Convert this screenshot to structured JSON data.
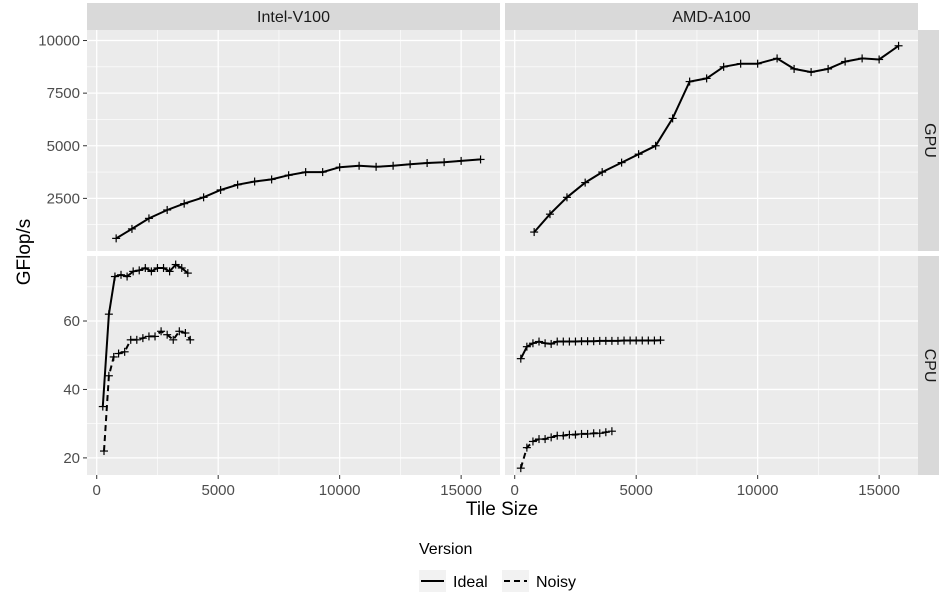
{
  "chart_data": {
    "type": "line",
    "facet_columns": [
      "Intel-V100",
      "AMD-A100"
    ],
    "facet_rows": [
      "GPU",
      "CPU"
    ],
    "xlabel": "Tile Size",
    "ylabel": "GFlop/s",
    "xlim": [
      -400,
      16600
    ],
    "x_ticks": [
      0,
      5000,
      10000,
      15000
    ],
    "x_tick_labels": [
      "0",
      "5000",
      "10000",
      "15000"
    ],
    "rows": {
      "GPU": {
        "ylim": [
          0,
          10500
        ],
        "y_ticks": [
          2500,
          5000,
          7500,
          10000
        ],
        "y_tick_labels": [
          "2500",
          "5000",
          "7500",
          "10000"
        ]
      },
      "CPU": {
        "ylim": [
          15,
          79
        ],
        "y_ticks": [
          20,
          40,
          60
        ],
        "y_tick_labels": [
          "20",
          "40",
          "60"
        ]
      }
    },
    "legend": {
      "title": "Version",
      "position": "bottom",
      "entries": [
        {
          "name": "Ideal",
          "linetype": "solid"
        },
        {
          "name": "Noisy",
          "linetype": "dashed"
        }
      ]
    },
    "panels": [
      {
        "column": "Intel-V100",
        "row": "GPU",
        "series": [
          {
            "name": "Ideal",
            "x": [
              800,
              1450,
              2150,
              2900,
              3600,
              4400,
              5100,
              5800,
              6500,
              7200,
              7900,
              8600,
              9300,
              10000,
              10800,
              11500,
              12200,
              12900,
              13600,
              14300,
              15000,
              15800
            ],
            "y": [
              600,
              1050,
              1550,
              1950,
              2250,
              2550,
              2900,
              3150,
              3300,
              3400,
              3600,
              3750,
              3750,
              3980,
              4050,
              4000,
              4050,
              4120,
              4180,
              4220,
              4280,
              4350
            ]
          }
        ]
      },
      {
        "column": "AMD-A100",
        "row": "GPU",
        "series": [
          {
            "name": "Ideal",
            "x": [
              800,
              1450,
              2150,
              2900,
              3600,
              4400,
              5100,
              5800,
              6500,
              7200,
              7900,
              8600,
              9300,
              10000,
              10800,
              11500,
              12200,
              12900,
              13600,
              14300,
              15000,
              15800
            ],
            "y": [
              900,
              1750,
              2550,
              3250,
              3750,
              4200,
              4600,
              5000,
              6300,
              8050,
              8200,
              8750,
              8900,
              8900,
              9150,
              8650,
              8500,
              8650,
              9000,
              9150,
              9100,
              9750
            ]
          }
        ]
      },
      {
        "column": "Intel-V100",
        "row": "CPU",
        "series": [
          {
            "name": "Ideal",
            "x": [
              250,
              500,
              750,
              1000,
              1250,
              1500,
              1750,
              2000,
              2250,
              2500,
              2750,
              3000,
              3250,
              3500,
              3750
            ],
            "y": [
              35,
              62,
              73,
              73.5,
              73,
              74.5,
              74.8,
              75.5,
              74.5,
              75.5,
              75.5,
              74.5,
              76.5,
              75.5,
              74
            ]
          },
          {
            "name": "Noisy",
            "x": [
              300,
              500,
              700,
              900,
              1150,
              1400,
              1650,
              1900,
              2150,
              2400,
              2650,
              2900,
              3150,
              3400,
              3650,
              3850
            ],
            "y": [
              22,
              44,
              49.5,
              50.5,
              51,
              54.5,
              54.5,
              55,
              55.5,
              55.5,
              57,
              56,
              54.5,
              57,
              56.5,
              54.5
            ]
          }
        ]
      },
      {
        "column": "AMD-A100",
        "row": "CPU",
        "series": [
          {
            "name": "Ideal",
            "x": [
              250,
              500,
              750,
              1000,
              1250,
              1500,
              1750,
              2000,
              2250,
              2500,
              2750,
              3000,
              3250,
              3500,
              3750,
              4000,
              4250,
              4500,
              4750,
              5000,
              5250,
              5500,
              5750,
              6000
            ],
            "y": [
              49,
              52.5,
              53.5,
              54,
              53.5,
              53.3,
              54,
              54,
              54,
              54,
              54.1,
              54.1,
              54.1,
              54.2,
              54.2,
              54.2,
              54.2,
              54.3,
              54.3,
              54.3,
              54.3,
              54.3,
              54.3,
              54.4
            ]
          },
          {
            "name": "Noisy",
            "x": [
              250,
              500,
              750,
              1000,
              1250,
              1500,
              1750,
              2000,
              2250,
              2500,
              2750,
              3000,
              3250,
              3500,
              3750,
              4000
            ],
            "y": [
              17,
              23,
              24.8,
              25.5,
              25.5,
              26,
              26.5,
              26.5,
              26.8,
              26.8,
              27,
              27,
              27.2,
              27.2,
              27.5,
              27.8
            ]
          }
        ]
      }
    ]
  }
}
